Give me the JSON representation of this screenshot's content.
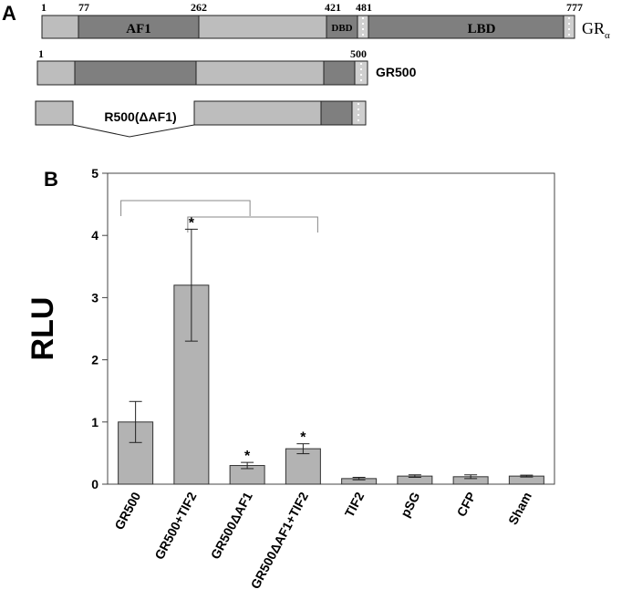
{
  "panel_a": {
    "letter": "A",
    "positions": [
      "1",
      "77",
      "262",
      "421",
      "481",
      "777"
    ],
    "domain_af1": "AF1",
    "domain_dbd": "DBD",
    "domain_lbd": "LBD",
    "full_name": "GR",
    "full_sub": "α",
    "gr500_start": "1",
    "gr500_end": "500",
    "gr500_name": "GR500",
    "deletion_name": "R500(ΔAF1)"
  },
  "panel_b": {
    "letter": "B"
  },
  "chart_data": {
    "type": "bar",
    "ylabel": "RLU",
    "xlabel": "",
    "ylim": [
      0,
      5
    ],
    "yticks": [
      "0",
      "1",
      "2",
      "3",
      "4",
      "5"
    ],
    "categories": [
      "GR500",
      "GR500+TIF2",
      "GR500ΔAF1",
      "GR500ΔAF1+TIF2",
      "TIF2",
      "pSG",
      "CFP",
      "Sham"
    ],
    "values": [
      1.0,
      3.2,
      0.3,
      0.57,
      0.09,
      0.13,
      0.12,
      0.13
    ],
    "errors": [
      0.33,
      0.9,
      0.05,
      0.08,
      0.02,
      0.02,
      0.03,
      0.015
    ],
    "significance": [
      "",
      "*",
      "*",
      "*",
      "",
      "",
      "",
      ""
    ],
    "bar_color": "#b3b3b3",
    "grid": false,
    "comparisons": [
      [
        0,
        2
      ],
      [
        1,
        3
      ]
    ]
  }
}
